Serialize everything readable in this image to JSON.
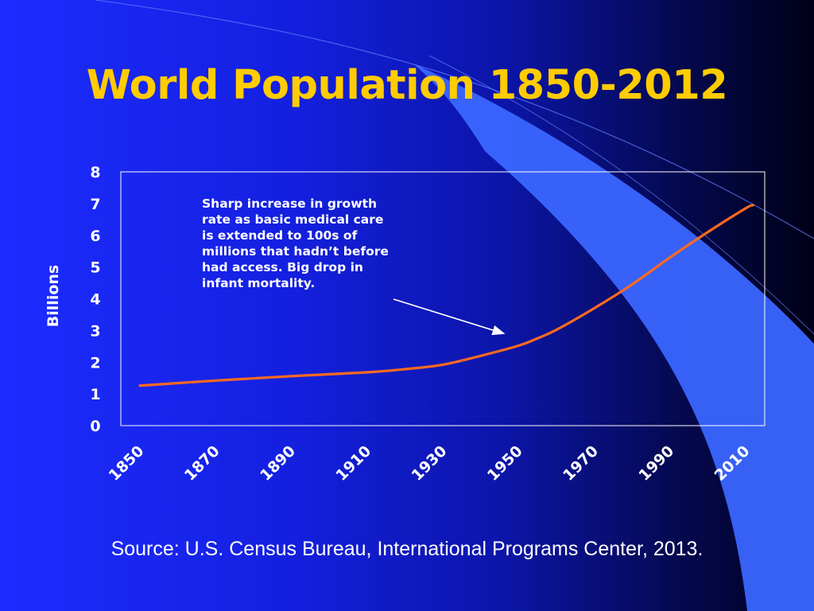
{
  "slide": {
    "title": "World Population 1850-2012",
    "source": "Source: U.S. Census Bureau, International Programs Center, 2013."
  },
  "colors": {
    "title": "#ffcc00",
    "line": "#ff6a1f",
    "swoosh": "#3a66ff",
    "text": "#ffffff"
  },
  "chart_data": {
    "type": "line",
    "title": "",
    "xlabel": "",
    "ylabel": "Billions",
    "ylim": [
      0,
      8
    ],
    "xlim": [
      1850,
      2010
    ],
    "yticks": [
      "0",
      "1",
      "2",
      "3",
      "4",
      "5",
      "6",
      "7",
      "8"
    ],
    "xticks": [
      "1850",
      "1870",
      "1890",
      "1910",
      "1930",
      "1950",
      "1970",
      "1990",
      "2010"
    ],
    "grid": false,
    "series": [
      {
        "x": [
          1850,
          1870,
          1890,
          1910,
          1920,
          1930,
          1940,
          1950,
          1955,
          1960,
          1970,
          1980,
          1990,
          2000,
          2010,
          2012
        ],
        "values": [
          1.26,
          1.42,
          1.56,
          1.68,
          1.78,
          1.92,
          2.2,
          2.52,
          2.75,
          3.02,
          3.7,
          4.45,
          5.3,
          6.1,
          6.85,
          6.95
        ]
      }
    ],
    "annotation": {
      "text": "Sharp increase in growth\nrate as basic medical care\nis extended to 100s of\nmillions that hadn’t before\nhad access.  Big drop in\ninfant mortality.",
      "points_to": {
        "x": 1947,
        "y": 2.6
      }
    }
  }
}
